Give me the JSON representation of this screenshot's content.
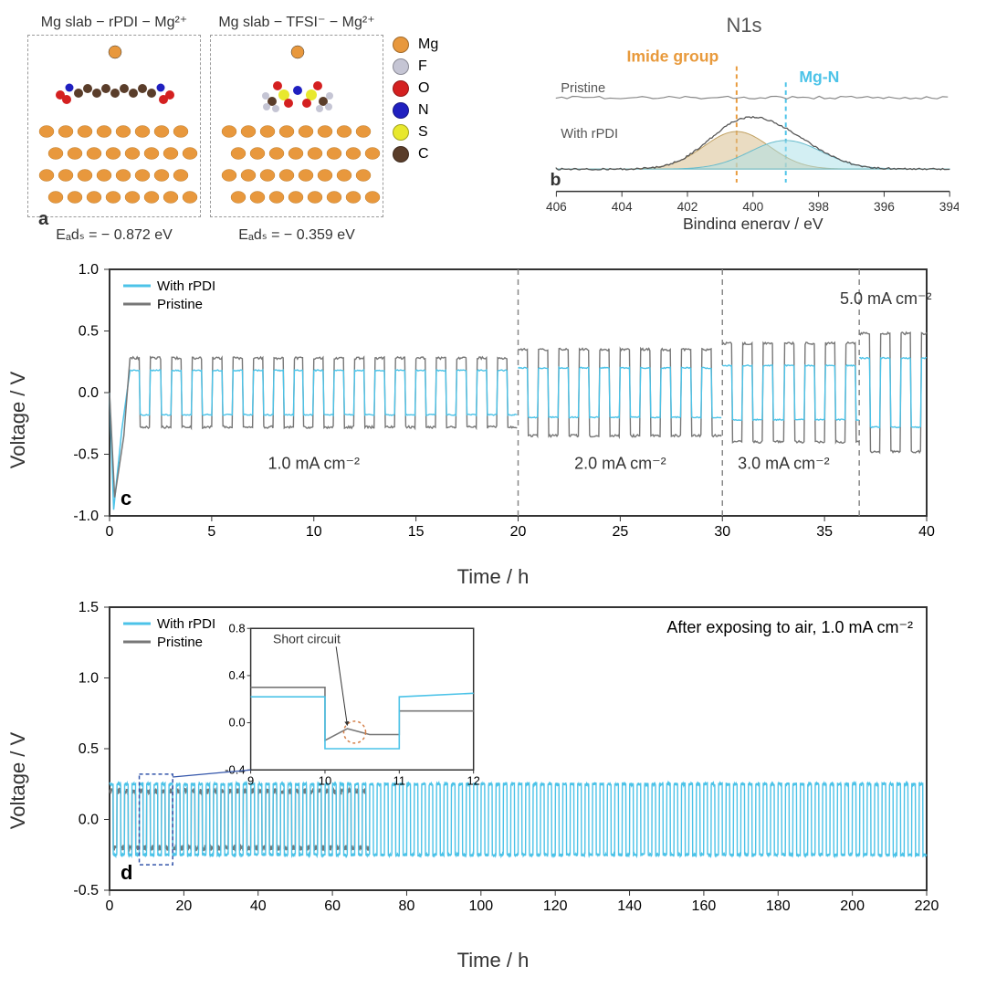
{
  "colors": {
    "rpdi_line": "#4cc3e8",
    "pristine_line": "#777777",
    "imide_label": "#e89a3c",
    "mgn_label": "#4cc3e8",
    "axis": "#333333",
    "dashed_gray": "#888888",
    "mg_atom": "#e8983d",
    "f_atom": "#c5c5d4",
    "o_atom": "#d42020",
    "n_atom": "#2020c0",
    "s_atom": "#e8e82d",
    "c_atom": "#5a3d2a",
    "peak_tan": "#d9c090",
    "peak_cyan": "#a8e0e8",
    "short_circuit_dashed": "#d4804a"
  },
  "panel_a": {
    "model1_title": "Mg slab − rPDI − Mg²⁺",
    "model2_title": "Mg slab − TFSI⁻ − Mg²⁺",
    "eads1": "Eₐdₛ = − 0.872 eV",
    "eads2": "Eₐdₛ = − 0.359 eV",
    "label": "a",
    "legend": [
      {
        "name": "Mg",
        "color": "#e8983d"
      },
      {
        "name": "F",
        "color": "#c5c5d4"
      },
      {
        "name": "O",
        "color": "#d42020"
      },
      {
        "name": "N",
        "color": "#2020c0"
      },
      {
        "name": "S",
        "color": "#e8e82d"
      },
      {
        "name": "C",
        "color": "#5a3d2a"
      }
    ]
  },
  "panel_b": {
    "title": "N1s",
    "imide_label": "Imide group",
    "mgn_label": "Mg-N",
    "pristine_label": "Pristine",
    "rpdi_label": "With rPDI",
    "xlabel": "Binding energy / eV",
    "label": "b",
    "xticks": [
      406,
      404,
      402,
      400,
      398,
      396,
      394
    ],
    "xrange": [
      406,
      394
    ],
    "imide_peak_x": 400.5,
    "mgn_peak_x": 399.0
  },
  "panel_c": {
    "label": "c",
    "ylabel": "Voltage / V",
    "xlabel": "Time / h",
    "legend_rpdi": "With rPDI",
    "legend_pristine": "Pristine",
    "xlim": [
      0,
      40
    ],
    "ylim": [
      -1.0,
      1.0
    ],
    "xticks": [
      0,
      5,
      10,
      15,
      20,
      25,
      30,
      35,
      40
    ],
    "yticks": [
      -1.0,
      -0.5,
      0.0,
      0.5,
      1.0
    ],
    "regions": [
      {
        "label": "1.0 mA cm⁻²",
        "x": 10,
        "divider_x": null
      },
      {
        "label": "2.0 mA cm⁻²",
        "x": 25,
        "divider_x": 20
      },
      {
        "label": "3.0  mA cm⁻²",
        "x": 33,
        "divider_x": 30
      },
      {
        "label": "5.0 mA cm⁻²",
        "x": 38,
        "divider_x": 36.7,
        "top": true
      }
    ],
    "rpdi_amp_by_region": [
      0.18,
      0.2,
      0.22,
      0.28
    ],
    "pristine_amp_by_region": [
      0.28,
      0.35,
      0.4,
      0.48
    ],
    "cycle_period_h": 1.0,
    "initial_dip": -0.95
  },
  "panel_d": {
    "label": "d",
    "ylabel": "Voltage / V",
    "xlabel": "Time / h",
    "legend_rpdi": "With rPDI",
    "legend_pristine": "Pristine",
    "condition": "After exposing to air, 1.0 mA cm⁻²",
    "xlim": [
      0,
      220
    ],
    "ylim": [
      -0.5,
      1.5
    ],
    "xticks": [
      0,
      20,
      40,
      60,
      80,
      100,
      120,
      140,
      160,
      180,
      200,
      220
    ],
    "yticks": [
      -0.5,
      0.0,
      0.5,
      1.0,
      1.5
    ],
    "pristine_end_h": 70,
    "rpdi_amp": 0.25,
    "pristine_amp": 0.2,
    "cycle_period_h": 2.0,
    "inset": {
      "label": "Short circuit",
      "xlim": [
        9,
        12
      ],
      "ylim": [
        -0.4,
        0.8
      ],
      "xticks": [
        9,
        10,
        11,
        12
      ],
      "yticks": [
        -0.4,
        0.0,
        0.4,
        0.8
      ],
      "zoom_region": [
        8,
        17
      ]
    }
  }
}
